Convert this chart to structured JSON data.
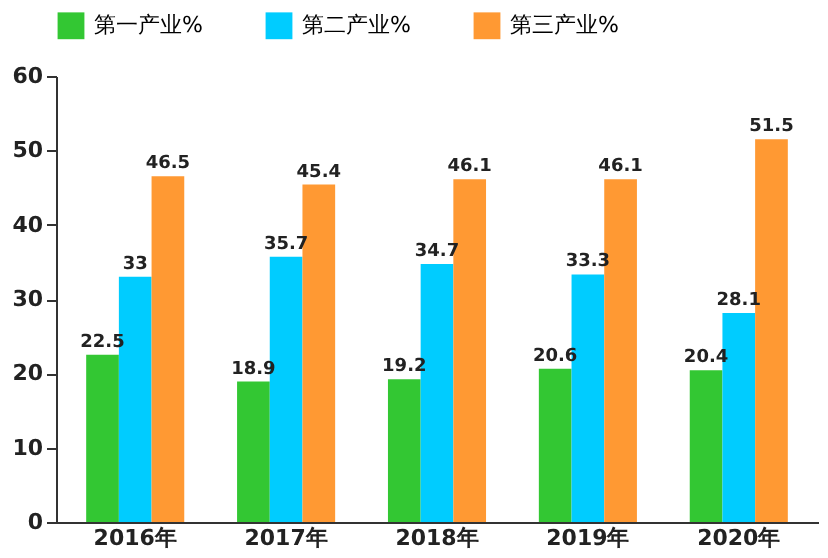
{
  "chart_data": {
    "type": "bar",
    "categories": [
      "2016年",
      "2017年",
      "2018年",
      "2019年",
      "2020年"
    ],
    "series": [
      {
        "name": "第一产业%",
        "color": "#33c733",
        "values": [
          22.5,
          18.9,
          19.2,
          20.6,
          20.4
        ]
      },
      {
        "name": "第二产业%",
        "color": "#00ccff",
        "values": [
          33,
          35.7,
          34.7,
          33.3,
          28.1
        ]
      },
      {
        "name": "第三产业%",
        "color": "#ff9933",
        "values": [
          46.5,
          45.4,
          46.1,
          46.1,
          51.5
        ]
      }
    ],
    "ylim": [
      0,
      60
    ],
    "yticks": [
      0,
      10,
      20,
      30,
      40,
      50,
      60
    ],
    "grid": false,
    "legend": "top",
    "data_labels": true
  }
}
